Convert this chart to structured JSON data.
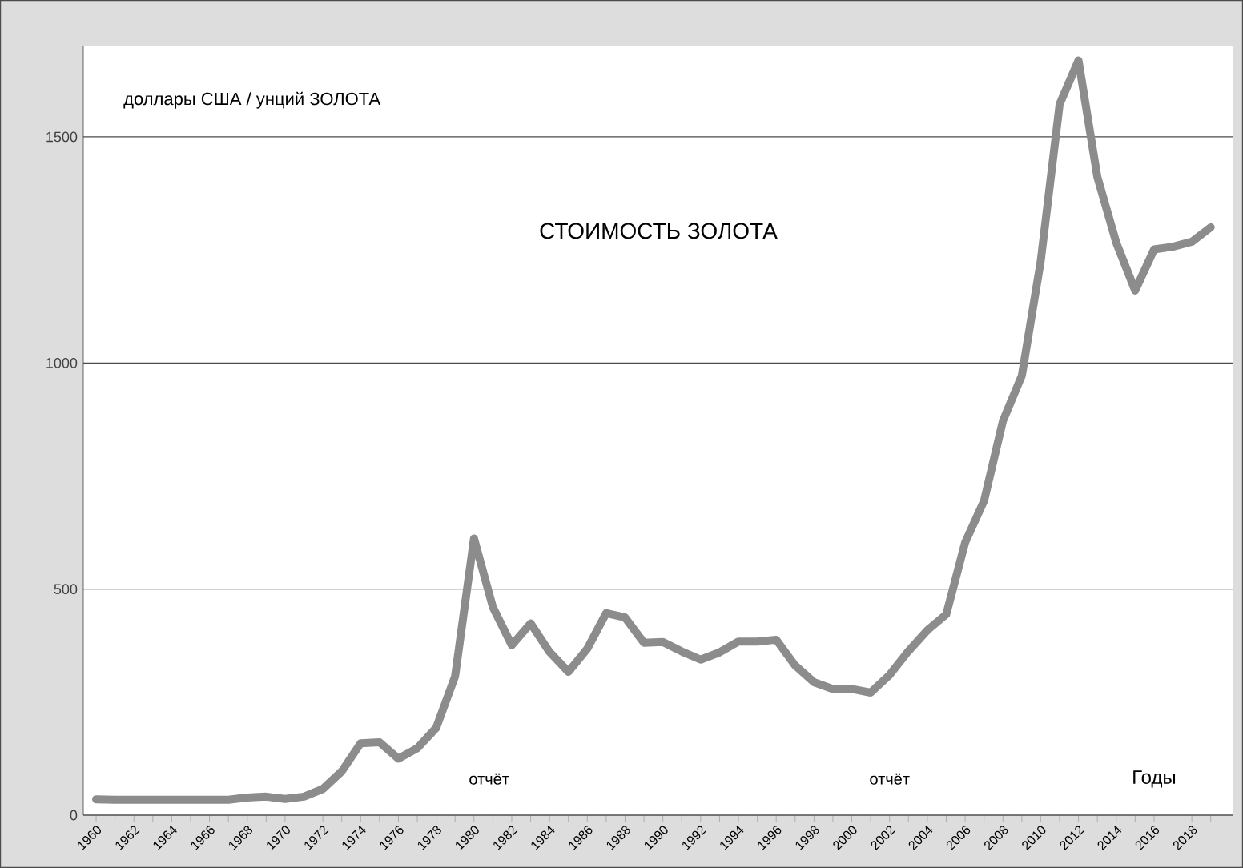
{
  "chart_data": {
    "type": "line",
    "title": "СТОИМОСТЬ ЗОЛОТА",
    "ylabel": "доллары США / унций ЗОЛОТА",
    "xlabel": "Годы",
    "annotations": [
      "отчёт",
      "отчёт"
    ],
    "categories": [
      "1960",
      null,
      "1962",
      null,
      "1964",
      null,
      "1966",
      null,
      "1968",
      null,
      "1970",
      null,
      "1972",
      null,
      "1974",
      null,
      "1976",
      null,
      "1978",
      null,
      "1980",
      null,
      "1982",
      null,
      "1984",
      null,
      "1986",
      null,
      "1988",
      null,
      "1990",
      null,
      "1992",
      null,
      "1994",
      null,
      "1996",
      null,
      "1998",
      null,
      "2000",
      null,
      "2002",
      null,
      "2004",
      null,
      "2006",
      null,
      "2008",
      null,
      "2010",
      null,
      "2012",
      null,
      "2014",
      null,
      "2016",
      null,
      "2018",
      null
    ],
    "values": [
      35,
      34,
      34,
      34,
      34,
      34,
      34,
      34,
      39,
      41,
      36,
      41,
      58,
      97,
      159,
      161,
      125,
      148,
      193,
      307,
      612,
      460,
      376,
      424,
      361,
      317,
      368,
      447,
      437,
      381,
      383,
      362,
      344,
      360,
      384,
      384,
      388,
      331,
      294,
      279,
      279,
      271,
      310,
      363,
      409,
      444,
      603,
      695,
      872,
      972,
      1225,
      1572,
      1669,
      1411,
      1266,
      1160,
      1251,
      1257,
      1268,
      1300
    ],
    "color": "#8c8c8c",
    "ylim": [
      0,
      1700
    ],
    "yticks": [
      0,
      500,
      1000,
      1500
    ],
    "grid": "y",
    "marker": "none",
    "line_style": "solid"
  }
}
